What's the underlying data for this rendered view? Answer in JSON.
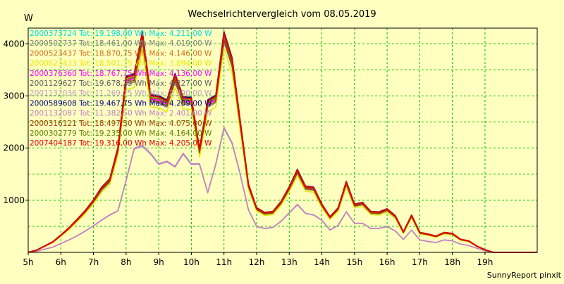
{
  "chart_data": {
    "type": "line",
    "title": "Wechselrichtervergleich vom 08.05.2019",
    "y_unit_label": "W",
    "ylim": [
      0,
      4300
    ],
    "y_ticks": [
      1000,
      2000,
      3000,
      4000
    ],
    "xlim": [
      5,
      20.6
    ],
    "x_ticks": [
      {
        "v": 5,
        "label": "5h"
      },
      {
        "v": 6,
        "label": "6h"
      },
      {
        "v": 7,
        "label": "7h"
      },
      {
        "v": 8,
        "label": "8h"
      },
      {
        "v": 9,
        "label": "9h"
      },
      {
        "v": 10,
        "label": "10h"
      },
      {
        "v": 11,
        "label": "11h"
      },
      {
        "v": 12,
        "label": "12h"
      },
      {
        "v": 13,
        "label": "13h"
      },
      {
        "v": 14,
        "label": "14h"
      },
      {
        "v": 15,
        "label": "15h"
      },
      {
        "v": 16,
        "label": "16h"
      },
      {
        "v": 17,
        "label": "17h"
      },
      {
        "v": 18,
        "label": "18h"
      },
      {
        "v": 19,
        "label": "19h"
      }
    ],
    "grid": true,
    "legend_position": "top-left, inside plot",
    "footer": "SunnyReport pinxit",
    "series": [
      {
        "name": "2000373724 Tot: 19.198,00 Wh Max: 4.211,00 W",
        "color": "#00e0e0",
        "type": "full",
        "scale": 1.0,
        "bump": [
          0,
          0
        ]
      },
      {
        "name": "2000502737 Tot: 18.461,00 Wh Max: 4.019,00 W",
        "color": "#808080",
        "type": "full",
        "scale": 0.96,
        "bump": [
          0,
          0
        ]
      },
      {
        "name": "2000523437 Tot: 18.870,75 Wh Max: 4.146,00 W",
        "color": "#d07020",
        "type": "full",
        "scale": 0.985,
        "bump": [
          0,
          0
        ]
      },
      {
        "name": "2000623433 Tot: 18.501,75 Wh Max: 3.894,00 W",
        "color": "#e8e800",
        "type": "full",
        "scale": 0.93,
        "bump": [
          14.6,
          80
        ]
      },
      {
        "name": "2000376360 Tot: 18.767,75 Wh Max: 4.136,00 W",
        "color": "#ff00ff",
        "type": "full",
        "scale": 0.98,
        "bump": [
          0,
          0
        ]
      },
      {
        "name": "2001129627 Tot: 19.678,25 Wh Max: 4.227,00 W",
        "color": "#606060",
        "type": "full",
        "scale": 1.01,
        "bump": [
          0,
          0
        ]
      },
      {
        "name": "2001132036 Tot: 11.269,75 Wh Max: 2.390,00 W",
        "color": "#c0a0c0",
        "type": "half",
        "scale": 0.99,
        "bump": [
          0,
          0
        ]
      },
      {
        "name": "2000589608 Tot: 19.467,75 Wh Max: 4.209,00 W",
        "color": "#000080",
        "type": "full",
        "scale": 1.005,
        "bump": [
          0,
          0
        ]
      },
      {
        "name": "2001132087 Tot: 11.382,50 Wh Max: 2.401,00 W",
        "color": "#c080c0",
        "type": "half",
        "scale": 1.0,
        "bump": [
          0,
          0
        ]
      },
      {
        "name": "2000316121 Tot: 18.497,50 Wh Max: 4.075,00 W",
        "color": "#a04000",
        "type": "full",
        "scale": 0.97,
        "bump": [
          0,
          0
        ]
      },
      {
        "name": "2000302779 Tot: 19.235,00 Wh Max: 4.164,00 W",
        "color": "#608000",
        "type": "full",
        "scale": 0.99,
        "bump": [
          0,
          0
        ]
      },
      {
        "name": "2007404187 Tot: 19.316,00 Wh Max: 4.205,00 W",
        "color": "#e00000",
        "type": "full",
        "scale": 1.0,
        "bump": [
          0,
          0
        ]
      }
    ],
    "profile_full": {
      "x": [
        5.0,
        5.25,
        5.5,
        5.75,
        6.0,
        6.25,
        6.5,
        6.75,
        7.0,
        7.25,
        7.5,
        7.75,
        8.0,
        8.25,
        8.5,
        8.75,
        9.0,
        9.25,
        9.5,
        9.75,
        10.0,
        10.25,
        10.5,
        10.75,
        11.0,
        11.25,
        11.5,
        11.75,
        12.0,
        12.25,
        12.5,
        12.75,
        13.0,
        13.25,
        13.5,
        13.75,
        14.0,
        14.25,
        14.5,
        14.75,
        15.0,
        15.25,
        15.5,
        15.75,
        16.0,
        16.25,
        16.5,
        16.75,
        17.0,
        17.25,
        17.5,
        17.75,
        18.0,
        18.25,
        18.5,
        18.75,
        19.0,
        19.25,
        19.5,
        19.75,
        20.0,
        20.6
      ],
      "y": [
        0,
        40,
        120,
        200,
        330,
        470,
        630,
        800,
        1000,
        1240,
        1400,
        2000,
        3350,
        3400,
        4200,
        3000,
        2980,
        2900,
        3400,
        2960,
        2950,
        1970,
        2900,
        2990,
        4200,
        3700,
        2500,
        1300,
        850,
        760,
        780,
        970,
        1250,
        1580,
        1260,
        1240,
        920,
        680,
        850,
        1350,
        920,
        950,
        780,
        770,
        830,
        700,
        390,
        710,
        380,
        350,
        310,
        380,
        360,
        250,
        220,
        120,
        50,
        0,
        0,
        0,
        0,
        0
      ]
    },
    "profile_half": {
      "x": [
        5.0,
        5.25,
        5.5,
        5.75,
        6.0,
        6.25,
        6.5,
        6.75,
        7.0,
        7.25,
        7.5,
        7.75,
        8.0,
        8.25,
        8.5,
        8.75,
        9.0,
        9.25,
        9.5,
        9.75,
        10.0,
        10.25,
        10.5,
        10.75,
        11.0,
        11.25,
        11.5,
        11.75,
        12.0,
        12.25,
        12.5,
        12.75,
        13.0,
        13.25,
        13.5,
        13.75,
        14.0,
        14.25,
        14.5,
        14.75,
        15.0,
        15.25,
        15.5,
        15.75,
        16.0,
        16.25,
        16.5,
        16.75,
        17.0,
        17.25,
        17.5,
        17.75,
        18.0,
        18.25,
        18.5,
        18.75,
        19.0,
        19.25,
        19.5,
        19.75,
        20.0,
        20.6
      ],
      "y": [
        0,
        20,
        60,
        100,
        170,
        240,
        320,
        410,
        510,
        620,
        720,
        800,
        1380,
        2000,
        2050,
        1900,
        1700,
        1750,
        1650,
        1900,
        1700,
        1700,
        1150,
        1700,
        2400,
        2100,
        1500,
        820,
        500,
        460,
        480,
        600,
        760,
        920,
        750,
        720,
        620,
        430,
        520,
        780,
        560,
        560,
        460,
        460,
        500,
        410,
        250,
        430,
        240,
        210,
        190,
        240,
        220,
        160,
        130,
        80,
        30,
        0,
        0,
        0,
        0,
        0
      ]
    }
  }
}
